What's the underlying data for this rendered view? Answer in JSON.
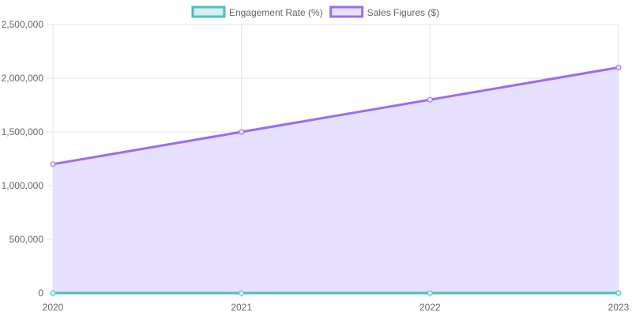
{
  "chart_data": {
    "type": "area",
    "title": "",
    "xlabel": "",
    "ylabel": "",
    "categories": [
      "2020",
      "2021",
      "2022",
      "2023"
    ],
    "ylim": [
      0,
      2500000
    ],
    "yticks": [
      0,
      500000,
      1000000,
      1500000,
      2000000,
      2500000
    ],
    "ytick_labels": [
      "0",
      "500,000",
      "1,000,000",
      "1,500,000",
      "2,000,000",
      "2,500,000"
    ],
    "grid": true,
    "legend_position": "top-center",
    "series": [
      {
        "name": "Engagement Rate (%)",
        "values": [
          3.5,
          4.2,
          5.1,
          4.8
        ],
        "stroke": "#4bbfbf",
        "fill": "#d4f1f1",
        "filled": false
      },
      {
        "name": "Sales Figures ($)",
        "values": [
          1200000,
          1500000,
          1800000,
          2100000
        ],
        "stroke": "#9b6cf0",
        "fill": "#e7e0ff",
        "filled": true
      }
    ]
  }
}
